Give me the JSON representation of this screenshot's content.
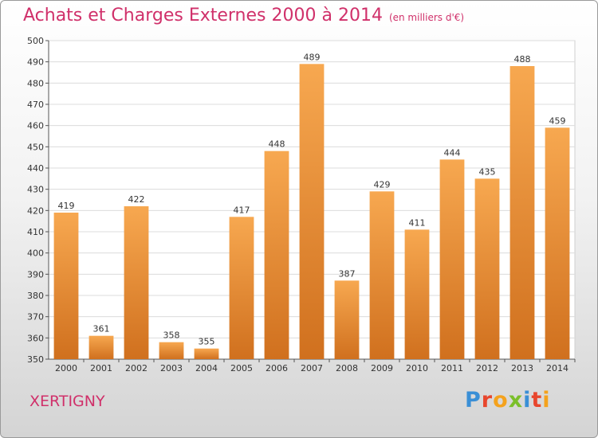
{
  "header": {
    "title": "Achats et Charges Externes 2000 à 2014",
    "subtitle": "(en milliers d'€)"
  },
  "footer": {
    "commune": "XERTIGNY",
    "logo_letters": [
      "P",
      "r",
      "o",
      "x",
      "i",
      "t",
      "i"
    ],
    "logo_colors": [
      "#3a8fd6",
      "#e8462d",
      "#f4a21d",
      "#7bbf2a",
      "#3a8fd6",
      "#e8462d",
      "#f4a21d"
    ]
  },
  "colors": {
    "bar_light": "#f7a850",
    "bar_dark": "#d0701e",
    "title": "#d0306a",
    "grid": "#dcdcdc"
  },
  "chart_data": {
    "type": "bar",
    "title": "Achats et Charges Externes 2000 à 2014",
    "subtitle": "(en milliers d'€)",
    "categories": [
      "2000",
      "2001",
      "2002",
      "2003",
      "2004",
      "2005",
      "2006",
      "2007",
      "2008",
      "2009",
      "2010",
      "2011",
      "2012",
      "2013",
      "2014"
    ],
    "values": [
      419,
      361,
      422,
      358,
      355,
      417,
      448,
      489,
      387,
      429,
      411,
      444,
      435,
      488,
      459
    ],
    "ylim": [
      350,
      500
    ],
    "yticks": [
      350,
      360,
      370,
      380,
      390,
      400,
      410,
      420,
      430,
      440,
      450,
      460,
      470,
      480,
      490,
      500
    ],
    "grid": true,
    "xlabel": "",
    "ylabel": ""
  }
}
